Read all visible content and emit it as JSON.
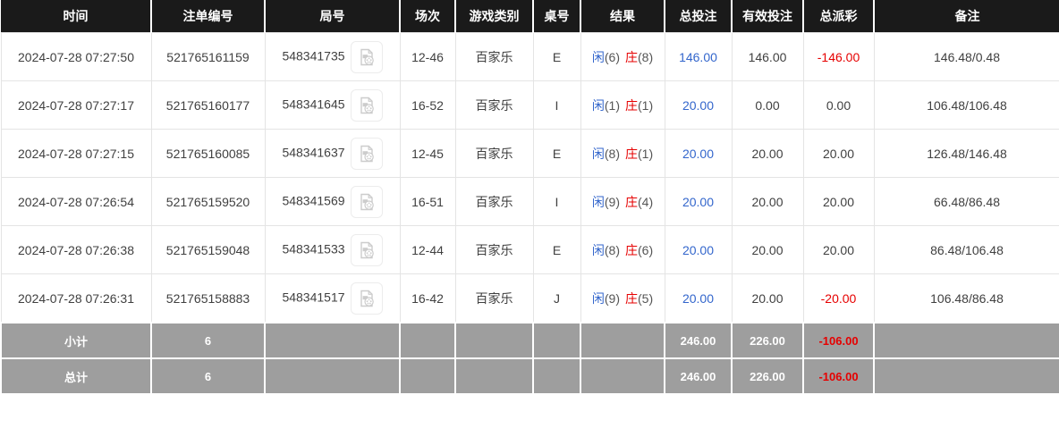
{
  "colors": {
    "header_bg": "#1a1a1a",
    "summary_bg": "#9e9e9e",
    "bet_blue": "#3366cc",
    "loss_red": "#e60000"
  },
  "table": {
    "columns": [
      {
        "key": "time",
        "label": "时间"
      },
      {
        "key": "bet_id",
        "label": "注单编号"
      },
      {
        "key": "round_id",
        "label": "局号"
      },
      {
        "key": "session",
        "label": "场次"
      },
      {
        "key": "game_type",
        "label": "游戏类别"
      },
      {
        "key": "table_no",
        "label": "桌号"
      },
      {
        "key": "result",
        "label": "结果"
      },
      {
        "key": "total_bet",
        "label": "总投注"
      },
      {
        "key": "valid_bet",
        "label": "有效投注"
      },
      {
        "key": "payout",
        "label": "总派彩"
      },
      {
        "key": "remark",
        "label": "备注"
      }
    ],
    "rows": [
      {
        "time": "2024-07-28 07:27:50",
        "bet_id": "521765161159",
        "round_id": "548341735",
        "session": "12-46",
        "game_type": "百家乐",
        "table_no": "E",
        "result": {
          "player": "闲",
          "player_score": "(6)",
          "banker": "庄",
          "banker_score": "(8)"
        },
        "total_bet": "146.00",
        "valid_bet": "146.00",
        "payout": "-146.00",
        "remark": "146.48/0.48"
      },
      {
        "time": "2024-07-28 07:27:17",
        "bet_id": "521765160177",
        "round_id": "548341645",
        "session": "16-52",
        "game_type": "百家乐",
        "table_no": "I",
        "result": {
          "player": "闲",
          "player_score": "(1)",
          "banker": "庄",
          "banker_score": "(1)"
        },
        "total_bet": "20.00",
        "valid_bet": "0.00",
        "payout": "0.00",
        "remark": "106.48/106.48"
      },
      {
        "time": "2024-07-28 07:27:15",
        "bet_id": "521765160085",
        "round_id": "548341637",
        "session": "12-45",
        "game_type": "百家乐",
        "table_no": "E",
        "result": {
          "player": "闲",
          "player_score": "(8)",
          "banker": "庄",
          "banker_score": "(1)"
        },
        "total_bet": "20.00",
        "valid_bet": "20.00",
        "payout": "20.00",
        "remark": "126.48/146.48"
      },
      {
        "time": "2024-07-28 07:26:54",
        "bet_id": "521765159520",
        "round_id": "548341569",
        "session": "16-51",
        "game_type": "百家乐",
        "table_no": "I",
        "result": {
          "player": "闲",
          "player_score": "(9)",
          "banker": "庄",
          "banker_score": "(4)"
        },
        "total_bet": "20.00",
        "valid_bet": "20.00",
        "payout": "20.00",
        "remark": "66.48/86.48"
      },
      {
        "time": "2024-07-28 07:26:38",
        "bet_id": "521765159048",
        "round_id": "548341533",
        "session": "12-44",
        "game_type": "百家乐",
        "table_no": "E",
        "result": {
          "player": "闲",
          "player_score": "(8)",
          "banker": "庄",
          "banker_score": "(6)"
        },
        "total_bet": "20.00",
        "valid_bet": "20.00",
        "payout": "20.00",
        "remark": "86.48/106.48"
      },
      {
        "time": "2024-07-28 07:26:31",
        "bet_id": "521765158883",
        "round_id": "548341517",
        "session": "16-42",
        "game_type": "百家乐",
        "table_no": "J",
        "result": {
          "player": "闲",
          "player_score": "(9)",
          "banker": "庄",
          "banker_score": "(5)"
        },
        "total_bet": "20.00",
        "valid_bet": "20.00",
        "payout": "-20.00",
        "remark": "106.48/86.48"
      }
    ],
    "summary_rows": [
      {
        "label": "小计",
        "count": "6",
        "total_bet": "246.00",
        "valid_bet": "226.00",
        "payout": "-106.00"
      },
      {
        "label": "总计",
        "count": "6",
        "total_bet": "246.00",
        "valid_bet": "226.00",
        "payout": "-106.00"
      }
    ]
  }
}
